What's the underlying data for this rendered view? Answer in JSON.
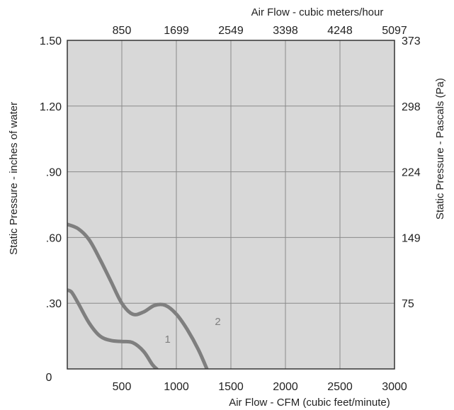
{
  "chart_data": {
    "type": "line",
    "x_label": "Air Flow - CFM (cubic feet/minute)",
    "x2_label": "Air Flow - cubic meters/hour",
    "y_label": "Static Pressure - inches of water",
    "y2_label": "Static Pressure - Pascals (Pa)",
    "xlim": [
      0,
      3000
    ],
    "ylim": [
      0,
      1.5
    ],
    "x_ticks": [
      {
        "value": 500,
        "label": "500"
      },
      {
        "value": 1000,
        "label": "1000"
      },
      {
        "value": 1500,
        "label": "1500"
      },
      {
        "value": 2000,
        "label": "2000"
      },
      {
        "value": 2500,
        "label": "2500"
      },
      {
        "value": 3000,
        "label": "3000"
      }
    ],
    "x2_ticks": [
      {
        "value": 500,
        "label": "850"
      },
      {
        "value": 1000,
        "label": "1699"
      },
      {
        "value": 1500,
        "label": "2549"
      },
      {
        "value": 2000,
        "label": "3398"
      },
      {
        "value": 2500,
        "label": "4248"
      },
      {
        "value": 3000,
        "label": "5097"
      }
    ],
    "y_ticks": [
      {
        "value": 0.3,
        "label": ".30"
      },
      {
        "value": 0.6,
        "label": ".60"
      },
      {
        "value": 0.9,
        "label": ".90"
      },
      {
        "value": 1.2,
        "label": "1.20"
      },
      {
        "value": 1.5,
        "label": "1.50"
      }
    ],
    "y2_ticks": [
      {
        "value": 0.3,
        "label": "75"
      },
      {
        "value": 0.6,
        "label": "149"
      },
      {
        "value": 0.9,
        "label": "224"
      },
      {
        "value": 1.2,
        "label": "298"
      },
      {
        "value": 1.5,
        "label": "373"
      }
    ],
    "origin_label": "0",
    "grid": true,
    "background_color": "#d8d8d8",
    "grid_color": "#8a8a8a",
    "series": [
      {
        "name": "1",
        "color": "#7f7f7f",
        "points": [
          [
            0,
            0.36
          ],
          [
            40,
            0.35
          ],
          [
            100,
            0.3
          ],
          [
            200,
            0.21
          ],
          [
            300,
            0.15
          ],
          [
            400,
            0.13
          ],
          [
            500,
            0.125
          ],
          [
            600,
            0.12
          ],
          [
            700,
            0.08
          ],
          [
            780,
            0.02
          ],
          [
            820,
            0.0
          ]
        ]
      },
      {
        "name": "2",
        "color": "#7f7f7f",
        "points": [
          [
            0,
            0.66
          ],
          [
            100,
            0.64
          ],
          [
            200,
            0.59
          ],
          [
            300,
            0.5
          ],
          [
            400,
            0.4
          ],
          [
            500,
            0.3
          ],
          [
            600,
            0.25
          ],
          [
            700,
            0.26
          ],
          [
            800,
            0.29
          ],
          [
            900,
            0.29
          ],
          [
            1000,
            0.25
          ],
          [
            1100,
            0.18
          ],
          [
            1200,
            0.09
          ],
          [
            1280,
            0.0
          ]
        ]
      }
    ]
  }
}
